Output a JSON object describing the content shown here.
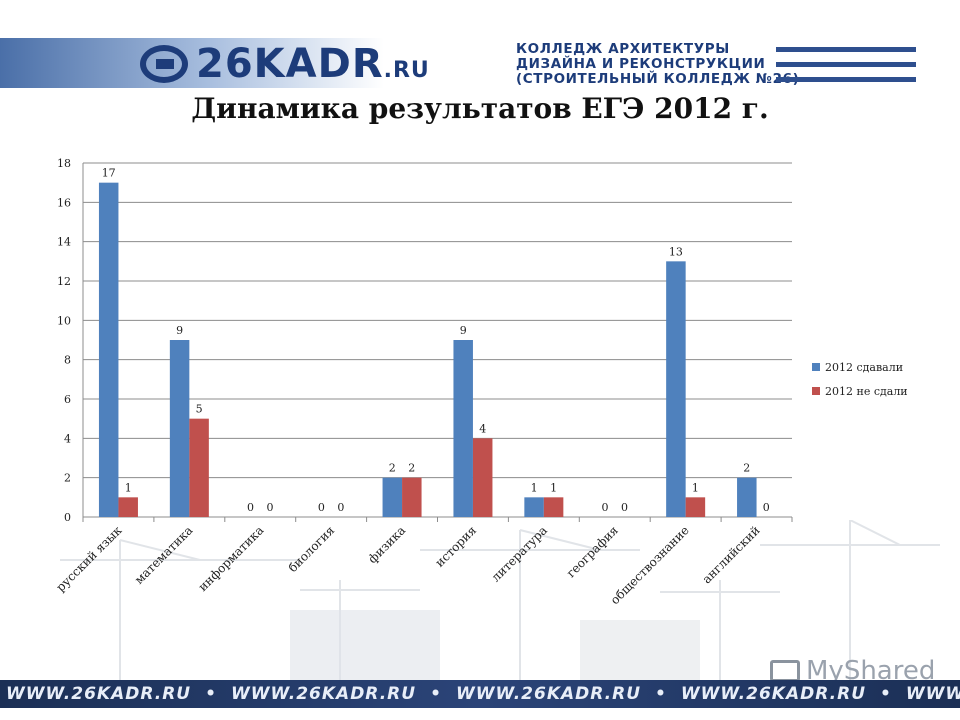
{
  "header": {
    "logo_text": "26KADR",
    "logo_suffix": ".RU",
    "college_lines": [
      "КОЛЛЕДЖ АРХИТЕКТУРЫ",
      "ДИЗАЙНА И РЕКОНСТРУКЦИИ",
      "(СТРОИТЕЛЬНЫЙ КОЛЛЕДЖ №26)"
    ]
  },
  "title": "Динамика результатов ЕГЭ 2012 г.",
  "footer": {
    "items": [
      "WWW.26KADR.RU",
      "•",
      "WWW.26KADR.RU",
      "•",
      "WWW.26KADR.RU",
      "•",
      "WWW.26KADR.RU",
      "•",
      "WWW.26KADR.RU"
    ]
  },
  "watermark": "MyShared",
  "colors": {
    "series1": "#4f81bd",
    "series2": "#c0504d",
    "brand": "#1d3c7a"
  },
  "chart_data": {
    "type": "bar",
    "title": "Динамика результатов ЕГЭ 2012 г.",
    "xlabel": "",
    "ylabel": "",
    "ylim": [
      0,
      18
    ],
    "yticks": [
      0,
      2,
      4,
      6,
      8,
      10,
      12,
      14,
      16,
      18
    ],
    "grid": true,
    "legend_position": "right",
    "categories": [
      "русский язык",
      "математика",
      "информатика",
      "биология",
      "физика",
      "история",
      "литература",
      "география",
      "обществознание",
      "английский"
    ],
    "series": [
      {
        "name": "2012 сдавали",
        "color": "#4f81bd",
        "values": [
          17,
          9,
          0,
          0,
          2,
          9,
          1,
          0,
          13,
          2
        ]
      },
      {
        "name": "2012 не сдали",
        "color": "#c0504d",
        "values": [
          1,
          5,
          0,
          0,
          2,
          4,
          1,
          0,
          1,
          0
        ]
      }
    ]
  }
}
